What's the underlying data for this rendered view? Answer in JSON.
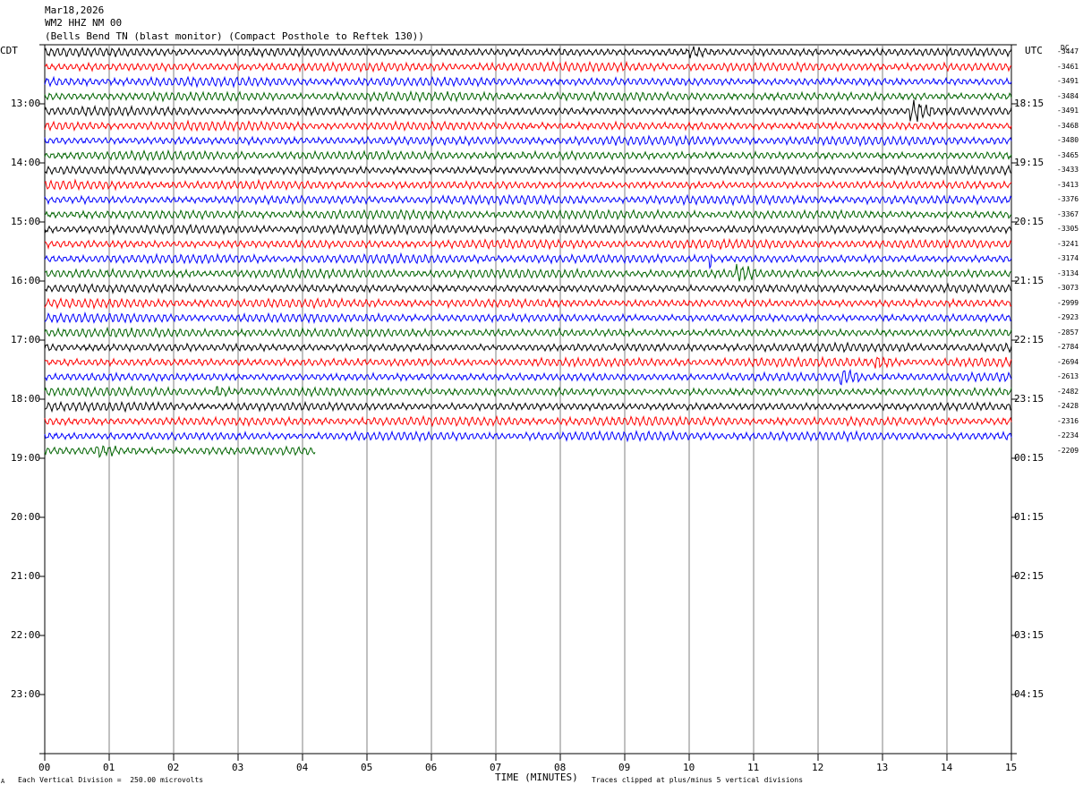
{
  "header": {
    "date": "Mar18,2026",
    "station": "WM2 HHZ NM 00",
    "location": "(Bells Bend TN (blast monitor) (Compact Posthole to Reftek 130))"
  },
  "left_axis_title": "CDT",
  "right_axis_title": "UTC",
  "dc_title": "DC",
  "colors": {
    "cycle": [
      "#000000",
      "#ff0000",
      "#0000ff",
      "#006400"
    ],
    "grid": "#808080"
  },
  "chart_data": {
    "type": "line",
    "title": "",
    "xlabel": "TIME (MINUTES)",
    "x_range": [
      0,
      15
    ],
    "x_ticks": [
      "00",
      "01",
      "02",
      "03",
      "04",
      "05",
      "06",
      "07",
      "08",
      "09",
      "10",
      "11",
      "12",
      "13",
      "14",
      "15"
    ],
    "rows_total": 48,
    "rows_recorded": 28,
    "last_row_minutes_recorded": 4.2,
    "left_hour_labels": [
      "13:00",
      "14:00",
      "15:00",
      "16:00",
      "17:00",
      "18:00",
      "19:00",
      "20:00",
      "21:00",
      "22:00",
      "23:00"
    ],
    "right_hour_labels": [
      "18:15",
      "19:15",
      "20:15",
      "21:15",
      "22:15",
      "23:15",
      "00:15",
      "01:15",
      "02:15",
      "03:15",
      "04:15"
    ],
    "dc_offsets": [
      "-3447",
      "-3461",
      "-3491",
      "-3484",
      "-3491",
      "-3468",
      "-3480",
      "-3465",
      "-3433",
      "-3413",
      "-3376",
      "-3367",
      "-3305",
      "-3241",
      "-3174",
      "-3134",
      "-3073",
      "-2999",
      "-2923",
      "-2857",
      "-2784",
      "-2694",
      "-2613",
      "-2482",
      "-2428",
      "-2316",
      "-2234",
      "-2209"
    ],
    "events": [
      {
        "row": 4,
        "minute": 13.45,
        "duration": 0.35,
        "amp": 3.0
      },
      {
        "row": 14,
        "minute": 10.3,
        "duration": 0.05,
        "amp": 4.0
      },
      {
        "row": 15,
        "minute": 10.75,
        "duration": 0.3,
        "amp": 1.6
      },
      {
        "row": 22,
        "minute": 12.35,
        "duration": 0.3,
        "amp": 1.7
      },
      {
        "row": 21,
        "minute": 12.9,
        "duration": 0.3,
        "amp": 1.2
      },
      {
        "row": 27,
        "minute": 0.8,
        "duration": 0.3,
        "amp": 1.5
      },
      {
        "row": 23,
        "minute": 2.65,
        "duration": 0.25,
        "amp": 1.3
      },
      {
        "row": 0,
        "minute": 10.0,
        "duration": 0.3,
        "amp": 1.3
      }
    ]
  },
  "footer": {
    "scale": "Each Vertical Division =  250.00 microvolts",
    "clip": "Traces clipped at plus/minus 5 vertical divisions",
    "mark": "A"
  }
}
